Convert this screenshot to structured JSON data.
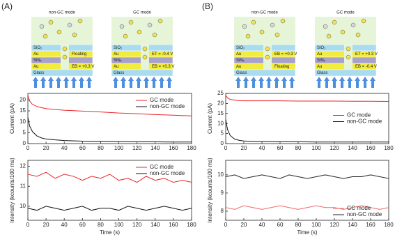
{
  "panels": [
    {
      "label": "(A)",
      "diagrams": [
        {
          "title": "non-GC mode",
          "layers": [
            "SiO₂",
            "Au",
            "SiNₓ",
            "Au",
            "Glass"
          ],
          "top_label": "Floating",
          "bottom_label": "EB = +0.3 V"
        },
        {
          "title": "GC mode",
          "layers": [
            "SiO₂",
            "Au",
            "SiNₓ",
            "Au",
            "Glass"
          ],
          "top_label": "ET = -0.4 V",
          "bottom_label": "EB = +0.3 V"
        }
      ]
    },
    {
      "label": "(B)",
      "diagrams": [
        {
          "title": "non-GC mode",
          "layers": [
            "SiO₂",
            "Au",
            "SiNₓ",
            "Au",
            "Glass"
          ],
          "top_label": "EB = +0.3 V",
          "bottom_label": "Floating"
        },
        {
          "title": "GC mode",
          "layers": [
            "SiO₂",
            "Au",
            "SiNₓ",
            "Au",
            "Glass"
          ],
          "top_label": "ET = +0.3 V",
          "bottom_label": "EB = -0.4 V"
        }
      ]
    }
  ],
  "chart_data": [
    {
      "type": "line",
      "ylabel": "Current (pA)",
      "x": [
        0,
        2,
        5,
        10,
        15,
        20,
        30,
        40,
        60,
        80,
        100,
        120,
        140,
        160,
        180
      ],
      "series": [
        {
          "name": "GC mode",
          "color": "#e8262a",
          "values": [
            22,
            19.5,
            18,
            17,
            16.5,
            16,
            15.6,
            15.3,
            14.9,
            14.5,
            14,
            13.7,
            13.3,
            13,
            12.7
          ]
        },
        {
          "name": "non-GC mode",
          "color": "#111111",
          "values": [
            12,
            8,
            5.5,
            3.5,
            2.6,
            2.1,
            1.7,
            1.4,
            1.1,
            1,
            0.9,
            0.8,
            0.8,
            0.7,
            0.7
          ]
        }
      ],
      "xlim": [
        0,
        180
      ],
      "xticks": [
        0,
        20,
        40,
        60,
        80,
        100,
        120,
        140,
        160,
        180
      ],
      "ylim": [
        0,
        23
      ],
      "yticks": [
        0,
        5,
        10,
        15,
        20
      ],
      "legend": "upper right"
    },
    {
      "type": "line",
      "ylabel": "Intensity (kcounts/100 ms)",
      "xlabel": "Time (s)",
      "x": [
        0,
        10,
        20,
        30,
        40,
        50,
        60,
        70,
        80,
        90,
        100,
        110,
        120,
        130,
        140,
        150,
        160,
        170,
        180
      ],
      "series": [
        {
          "name": "GC mode",
          "color": "#e8262a",
          "values": [
            11.6,
            11.5,
            11.7,
            11.4,
            11.6,
            11.5,
            11.3,
            11.5,
            11.4,
            11.6,
            11.3,
            11.4,
            11.2,
            11.5,
            11.3,
            11.4,
            11.2,
            11.3,
            11.2
          ]
        },
        {
          "name": "non-GC mode",
          "color": "#111111",
          "values": [
            9.9,
            9.8,
            10.0,
            9.9,
            9.8,
            9.9,
            10.0,
            9.8,
            9.9,
            9.9,
            9.8,
            10.0,
            9.9,
            9.8,
            9.9,
            10.0,
            9.9,
            9.8,
            9.9
          ]
        }
      ],
      "xlim": [
        0,
        180
      ],
      "xticks": [
        0,
        20,
        40,
        60,
        80,
        100,
        120,
        140,
        160,
        180
      ],
      "ylim": [
        9.3,
        12.3
      ],
      "yticks": [
        10,
        11,
        12
      ],
      "legend": "upper right"
    },
    {
      "type": "line",
      "ylabel": "Current (pA)",
      "x": [
        0,
        2,
        5,
        10,
        15,
        20,
        30,
        40,
        60,
        80,
        100,
        120,
        140,
        160,
        180
      ],
      "series": [
        {
          "name": "GC mode",
          "color": "#e8262a",
          "values": [
            24,
            22.8,
            22,
            21.6,
            21.4,
            21.3,
            21.3,
            21.3,
            21.3,
            21.2,
            21.2,
            21.2,
            21.1,
            21.1,
            21
          ]
        },
        {
          "name": "non-GC mode",
          "color": "#111111",
          "values": [
            12,
            7,
            4,
            2.2,
            1.6,
            1.3,
            1.1,
            1,
            0.9,
            0.9,
            0.8,
            0.8,
            0.8,
            0.8,
            0.8
          ]
        }
      ],
      "xlim": [
        0,
        180
      ],
      "xticks": [
        0,
        20,
        40,
        60,
        80,
        100,
        120,
        140,
        160,
        180
      ],
      "ylim": [
        0,
        25
      ],
      "yticks": [
        0,
        5,
        10,
        15,
        20,
        25
      ],
      "legend": "center right"
    },
    {
      "type": "line",
      "ylabel": "Intensity (kcounts/100 ms)",
      "xlabel": "Time (s)",
      "x": [
        0,
        10,
        20,
        30,
        40,
        50,
        60,
        70,
        80,
        90,
        100,
        110,
        120,
        130,
        140,
        150,
        160,
        170,
        180
      ],
      "series": [
        {
          "name": "GC mode",
          "color": "#f0686a",
          "values": [
            8.2,
            8.1,
            8.3,
            8.2,
            8.1,
            8.2,
            8.3,
            8.2,
            8.1,
            8.2,
            8.3,
            8.2,
            8.2,
            8.1,
            8.2,
            8.3,
            8.2,
            8.1,
            8.2
          ]
        },
        {
          "name": "non-GC mode",
          "color": "#222222",
          "values": [
            9.9,
            10.0,
            9.8,
            9.9,
            10.0,
            9.9,
            9.8,
            10.0,
            9.9,
            9.8,
            9.9,
            10.0,
            9.9,
            9.8,
            9.9,
            9.9,
            10.0,
            9.9,
            9.8
          ]
        }
      ],
      "xlim": [
        0,
        180
      ],
      "xticks": [
        0,
        20,
        40,
        60,
        80,
        100,
        120,
        140,
        160,
        180
      ],
      "ylim": [
        7.5,
        10.8
      ],
      "yticks": [
        8,
        9,
        10
      ],
      "legend": "lower right"
    }
  ]
}
